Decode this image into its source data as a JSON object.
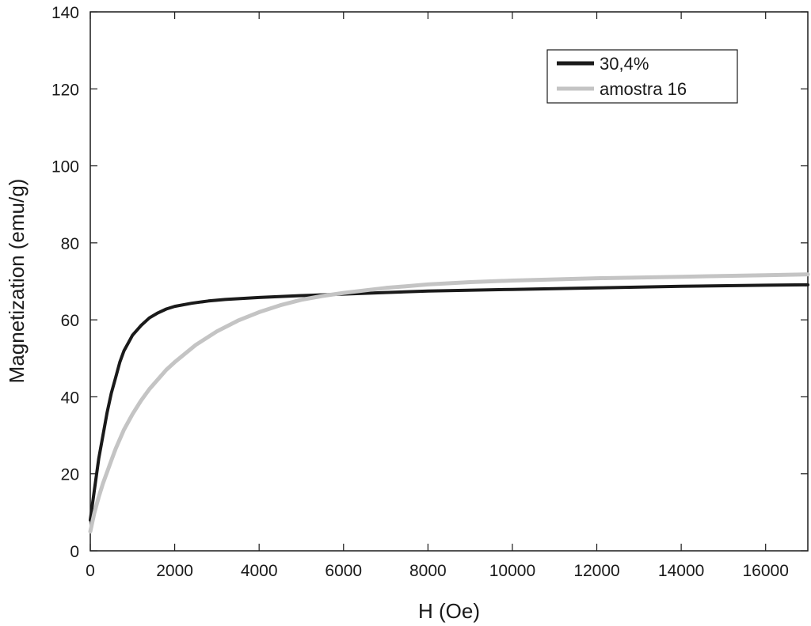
{
  "chart_data": {
    "type": "line",
    "title": "",
    "xlabel": "H (Oe)",
    "ylabel": "Magnetization (emu/g)",
    "xlim": [
      0,
      17000
    ],
    "ylim": [
      0,
      140
    ],
    "xticks": [
      0,
      2000,
      4000,
      6000,
      8000,
      10000,
      12000,
      14000,
      16000
    ],
    "yticks": [
      0,
      20,
      40,
      60,
      80,
      100,
      120,
      140
    ],
    "xtick_labels": [
      "0",
      "2000",
      "4000",
      "6000",
      "8000",
      "10000",
      "12000",
      "14000",
      "16000"
    ],
    "ytick_labels": [
      "0",
      "20",
      "40",
      "60",
      "80",
      "100",
      "120",
      "140"
    ],
    "grid": false,
    "legend_position": "top-right",
    "series": [
      {
        "name": "30,4%",
        "color": "#1a1a1a",
        "x": [
          0,
          100,
          200,
          300,
          400,
          500,
          600,
          700,
          800,
          900,
          1000,
          1200,
          1400,
          1600,
          1800,
          2000,
          2400,
          2800,
          3200,
          4000,
          5000,
          6000,
          7000,
          8000,
          10000,
          12000,
          14000,
          16000,
          17000
        ],
        "y": [
          8,
          16,
          24,
          30,
          36,
          41,
          45,
          49,
          52,
          54,
          56,
          58.5,
          60.5,
          61.8,
          62.8,
          63.5,
          64.3,
          64.9,
          65.3,
          65.8,
          66.3,
          66.7,
          67.1,
          67.5,
          67.9,
          68.3,
          68.7,
          69.0,
          69.1
        ]
      },
      {
        "name": "amostra 16",
        "color": "#c4c4c4",
        "x": [
          0,
          100,
          200,
          300,
          400,
          500,
          600,
          800,
          1000,
          1200,
          1400,
          1600,
          1800,
          2000,
          2500,
          3000,
          3500,
          4000,
          4500,
          5000,
          5500,
          6000,
          7000,
          8000,
          9000,
          10000,
          12000,
          14000,
          16000,
          17000
        ],
        "y": [
          5,
          10,
          14,
          17.5,
          20.5,
          23.5,
          26.5,
          31.5,
          35.5,
          39,
          42,
          44.5,
          47,
          49,
          53.5,
          57,
          59.8,
          62,
          63.8,
          65.2,
          66.2,
          67,
          68.3,
          69.2,
          69.8,
          70.2,
          70.8,
          71.2,
          71.6,
          71.8
        ]
      }
    ]
  }
}
